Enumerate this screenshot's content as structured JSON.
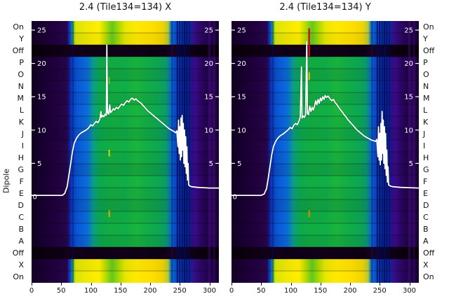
{
  "colors": {
    "background": "#ffffff",
    "line": "#ffffff",
    "axis_text": "#111111",
    "inner_text": "#ffffff",
    "row_shades": [
      1,
      0.96,
      1,
      0.98,
      0.92,
      1,
      0.95,
      1,
      0.97,
      0.92,
      1,
      0.96,
      0.9,
      1,
      0.95,
      0.9,
      0.97,
      1,
      0.93,
      1,
      0.97,
      1
    ],
    "gradients": {
      "normal": [
        [
          0.0,
          "#10001f"
        ],
        [
          0.06,
          "#180032"
        ],
        [
          0.13,
          "#22003f"
        ],
        [
          0.19,
          "#26064a"
        ],
        [
          0.2,
          "#131a8a"
        ],
        [
          0.215,
          "#0b3ec2"
        ],
        [
          0.245,
          "#0a57d8"
        ],
        [
          0.3,
          "#0a6fd8"
        ],
        [
          0.33,
          "#0b9f86"
        ],
        [
          0.365,
          "#0baa4e"
        ],
        [
          0.43,
          "#12ad41"
        ],
        [
          0.5,
          "#0fae48"
        ],
        [
          0.56,
          "#1ab53b"
        ],
        [
          0.62,
          "#11ad47"
        ],
        [
          0.68,
          "#0ca751"
        ],
        [
          0.72,
          "#0b9a6e"
        ],
        [
          0.744,
          "#0a6fc0"
        ],
        [
          0.76,
          "#0a4ecd"
        ],
        [
          0.8,
          "#0935b5"
        ],
        [
          0.84,
          "#0b2496"
        ],
        [
          0.854,
          "#2a0f86"
        ],
        [
          0.875,
          "#3b0a8a"
        ],
        [
          0.9,
          "#2e0668"
        ],
        [
          0.94,
          "#1e0347"
        ],
        [
          0.965,
          "#2b0857"
        ],
        [
          1.0,
          "#170130"
        ]
      ],
      "bright": [
        [
          0.0,
          "#130026"
        ],
        [
          0.13,
          "#220040"
        ],
        [
          0.19,
          "#26064a"
        ],
        [
          0.2,
          "#1130b0"
        ],
        [
          0.212,
          "#0a62c8"
        ],
        [
          0.222,
          "#49c23c"
        ],
        [
          0.235,
          "#d8e40a"
        ],
        [
          0.3,
          "#f2ea00"
        ],
        [
          0.36,
          "#ffee00"
        ],
        [
          0.395,
          "#b8dc00"
        ],
        [
          0.43,
          "#62c81e"
        ],
        [
          0.465,
          "#a8d800"
        ],
        [
          0.5,
          "#e8e600"
        ],
        [
          0.56,
          "#ffe900"
        ],
        [
          0.64,
          "#ffdf00"
        ],
        [
          0.7,
          "#f0d400"
        ],
        [
          0.73,
          "#b0c83a"
        ],
        [
          0.745,
          "#0a6fc0"
        ],
        [
          0.77,
          "#0a4ecd"
        ],
        [
          0.82,
          "#0a35b0"
        ],
        [
          0.845,
          "#0b2496"
        ],
        [
          0.86,
          "#33128e"
        ],
        [
          0.9,
          "#2e0668"
        ],
        [
          0.95,
          "#1e0347"
        ],
        [
          1.0,
          "#170130"
        ]
      ],
      "off": [
        [
          0.0,
          "#070008"
        ],
        [
          0.15,
          "#0e0014"
        ],
        [
          0.2,
          "#13001c"
        ],
        [
          0.3,
          "#0f0016"
        ],
        [
          0.5,
          "#110018"
        ],
        [
          0.7,
          "#0d0012"
        ],
        [
          0.76,
          "#180226"
        ],
        [
          0.8,
          "#10001a"
        ],
        [
          0.9,
          "#0a000e"
        ],
        [
          1.0,
          "#060008"
        ]
      ]
    }
  },
  "chart_data": {
    "type": "heatmap",
    "description": "Two dipole-vs-frequency power heatmaps with overlaid white median spectrum line",
    "y_axis_label": "Dipole",
    "rows": [
      "On",
      "Y",
      "Off",
      "P",
      "O",
      "N",
      "M",
      "L",
      "K",
      "J",
      "I",
      "H",
      "G",
      "F",
      "E",
      "D",
      "C",
      "B",
      "A",
      "Off",
      "X",
      "On"
    ],
    "row_types": [
      "bright",
      "bright",
      "off",
      "normal",
      "normal",
      "normal",
      "normal",
      "normal",
      "normal",
      "normal",
      "normal",
      "normal",
      "normal",
      "normal",
      "normal",
      "normal",
      "normal",
      "normal",
      "normal",
      "off",
      "bright",
      "bright"
    ],
    "x_ticks": [
      0,
      50,
      100,
      150,
      200,
      250,
      300
    ],
    "x_range": [
      0,
      316
    ],
    "line_scale": {
      "ticks": [
        25,
        20,
        15,
        10,
        5
      ],
      "zero_label": "0",
      "range": [
        0,
        25
      ]
    },
    "stripes": [
      {
        "x": 70,
        "w": 1.5,
        "color": "#001060",
        "o": 0.5
      },
      {
        "x": 237,
        "w": 1.5,
        "color": "#001878",
        "o": 0.5
      },
      {
        "x": 246,
        "w": 2,
        "color": "#000a56",
        "o": 0.75
      },
      {
        "x": 250,
        "w": 2,
        "color": "#000a56",
        "o": 0.8
      },
      {
        "x": 254,
        "w": 2,
        "color": "#000a56",
        "o": 0.7
      },
      {
        "x": 258,
        "w": 2.5,
        "color": "#000a56",
        "o": 0.85
      },
      {
        "x": 262,
        "w": 2,
        "color": "#000a56",
        "o": 0.7
      },
      {
        "x": 266,
        "w": 1.5,
        "color": "#000a56",
        "o": 0.6
      },
      {
        "x": 300,
        "w": 4,
        "color": "#5a0d9e",
        "o": 0.35
      },
      {
        "x": 308,
        "w": 3,
        "color": "#5a0d9e",
        "o": 0.3
      }
    ],
    "plots": [
      {
        "title": "2.4 (Tile134=134) X",
        "polarization": "X",
        "markers": [
          {
            "x": 131,
            "row": 4.6,
            "span": 0.8,
            "color": "#5fc41e",
            "w": 2
          },
          {
            "x": 131,
            "row": 10.7,
            "span": 0.8,
            "color": "#c3dc00",
            "w": 2
          },
          {
            "x": 131,
            "row": 15.8,
            "span": 0.8,
            "color": "#e0a800",
            "w": 2
          }
        ],
        "line": [
          [
            0,
            0.2
          ],
          [
            40,
            0.2
          ],
          [
            52,
            0.2
          ],
          [
            56,
            0.5
          ],
          [
            60,
            1.5
          ],
          [
            63,
            3.2
          ],
          [
            66,
            5.0
          ],
          [
            69,
            6.8
          ],
          [
            72,
            8.0
          ],
          [
            76,
            8.8
          ],
          [
            80,
            9.3
          ],
          [
            84,
            9.6
          ],
          [
            88,
            9.8
          ],
          [
            92,
            10.0
          ],
          [
            96,
            10.3
          ],
          [
            100,
            10.8
          ],
          [
            103,
            10.6
          ],
          [
            106,
            11.0
          ],
          [
            109,
            11.3
          ],
          [
            112,
            11.1
          ],
          [
            115,
            11.6
          ],
          [
            117,
            12.8
          ],
          [
            118,
            11.9
          ],
          [
            120,
            12.2
          ],
          [
            122,
            12.0
          ],
          [
            124,
            12.4
          ],
          [
            126,
            12.2
          ],
          [
            127,
            22.8
          ],
          [
            128,
            12.6
          ],
          [
            130,
            12.4
          ],
          [
            132,
            13.8
          ],
          [
            133,
            12.6
          ],
          [
            135,
            12.8
          ],
          [
            138,
            13.2
          ],
          [
            140,
            13.0
          ],
          [
            143,
            13.4
          ],
          [
            146,
            13.2
          ],
          [
            149,
            13.6
          ],
          [
            152,
            13.9
          ],
          [
            155,
            13.7
          ],
          [
            158,
            14.1
          ],
          [
            161,
            14.4
          ],
          [
            164,
            14.2
          ],
          [
            167,
            14.6
          ],
          [
            170,
            14.8
          ],
          [
            173,
            14.5
          ],
          [
            176,
            14.7
          ],
          [
            179,
            14.4
          ],
          [
            182,
            14.2
          ],
          [
            185,
            14.0
          ],
          [
            188,
            13.7
          ],
          [
            191,
            13.4
          ],
          [
            194,
            13.1
          ],
          [
            197,
            12.8
          ],
          [
            200,
            12.6
          ],
          [
            204,
            12.3
          ],
          [
            208,
            12.0
          ],
          [
            212,
            11.7
          ],
          [
            216,
            11.4
          ],
          [
            220,
            11.1
          ],
          [
            224,
            10.8
          ],
          [
            228,
            10.5
          ],
          [
            232,
            10.2
          ],
          [
            236,
            10.0
          ],
          [
            240,
            9.8
          ],
          [
            243,
            9.6
          ],
          [
            245,
            9.9
          ],
          [
            247,
            7.5
          ],
          [
            248,
            11.5
          ],
          [
            249,
            6.5
          ],
          [
            250,
            10.5
          ],
          [
            251,
            5.5
          ],
          [
            252,
            11.8
          ],
          [
            253,
            6.0
          ],
          [
            254,
            12.2
          ],
          [
            255,
            7.0
          ],
          [
            256,
            11.0
          ],
          [
            257,
            5.0
          ],
          [
            258,
            10.0
          ],
          [
            259,
            4.5
          ],
          [
            260,
            9.0
          ],
          [
            261,
            3.5
          ],
          [
            262,
            7.5
          ],
          [
            263,
            2.5
          ],
          [
            264,
            5.0
          ],
          [
            265,
            1.8
          ],
          [
            267,
            1.6
          ],
          [
            270,
            1.5
          ],
          [
            280,
            1.4
          ],
          [
            290,
            1.35
          ],
          [
            300,
            1.3
          ],
          [
            316,
            1.3
          ]
        ]
      },
      {
        "title": "2.4 (Tile134=134) Y",
        "polarization": "Y",
        "markers": [
          {
            "x": 131,
            "row": 0.5,
            "span": 2.6,
            "color": "#cc1111",
            "w": 2.5
          },
          {
            "x": 131,
            "row": 4.2,
            "span": 0.9,
            "color": "#d8cc00",
            "w": 2
          },
          {
            "x": 131,
            "row": 15.8,
            "span": 0.8,
            "color": "#e08800",
            "w": 2
          }
        ],
        "line": [
          [
            0,
            0.2
          ],
          [
            50,
            0.2
          ],
          [
            55,
            0.4
          ],
          [
            59,
            1.2
          ],
          [
            62,
            2.8
          ],
          [
            65,
            4.6
          ],
          [
            68,
            6.4
          ],
          [
            71,
            7.6
          ],
          [
            75,
            8.4
          ],
          [
            79,
            8.9
          ],
          [
            83,
            9.2
          ],
          [
            87,
            9.4
          ],
          [
            91,
            9.7
          ],
          [
            95,
            10.0
          ],
          [
            99,
            10.4
          ],
          [
            102,
            10.2
          ],
          [
            105,
            10.7
          ],
          [
            108,
            11.0
          ],
          [
            111,
            10.8
          ],
          [
            114,
            11.4
          ],
          [
            116,
            12.0
          ],
          [
            118,
            19.5
          ],
          [
            119,
            11.8
          ],
          [
            121,
            12.1
          ],
          [
            123,
            11.9
          ],
          [
            125,
            12.3
          ],
          [
            127,
            23.3
          ],
          [
            128,
            12.5
          ],
          [
            130,
            12.3
          ],
          [
            132,
            13.6
          ],
          [
            134,
            12.8
          ],
          [
            136,
            13.4
          ],
          [
            138,
            13.0
          ],
          [
            140,
            13.6
          ],
          [
            142,
            14.4
          ],
          [
            144,
            13.8
          ],
          [
            146,
            14.6
          ],
          [
            148,
            14.0
          ],
          [
            150,
            14.8
          ],
          [
            152,
            14.4
          ],
          [
            154,
            15.0
          ],
          [
            156,
            14.6
          ],
          [
            158,
            15.2
          ],
          [
            160,
            14.9
          ],
          [
            163,
            15.1
          ],
          [
            166,
            14.7
          ],
          [
            169,
            14.4
          ],
          [
            172,
            14.6
          ],
          [
            175,
            14.1
          ],
          [
            178,
            13.8
          ],
          [
            181,
            13.4
          ],
          [
            184,
            13.0
          ],
          [
            187,
            12.7
          ],
          [
            190,
            12.3
          ],
          [
            193,
            12.0
          ],
          [
            196,
            11.6
          ],
          [
            200,
            11.2
          ],
          [
            204,
            10.8
          ],
          [
            208,
            10.4
          ],
          [
            212,
            10.0
          ],
          [
            216,
            9.7
          ],
          [
            220,
            9.4
          ],
          [
            224,
            9.1
          ],
          [
            228,
            8.9
          ],
          [
            232,
            8.7
          ],
          [
            236,
            8.5
          ],
          [
            240,
            8.4
          ],
          [
            243,
            8.3
          ],
          [
            245,
            8.6
          ],
          [
            247,
            6.0
          ],
          [
            248,
            10.5
          ],
          [
            249,
            5.5
          ],
          [
            250,
            9.5
          ],
          [
            251,
            4.8
          ],
          [
            252,
            11.0
          ],
          [
            253,
            5.5
          ],
          [
            254,
            12.8
          ],
          [
            255,
            6.5
          ],
          [
            256,
            11.5
          ],
          [
            257,
            5.0
          ],
          [
            258,
            10.5
          ],
          [
            259,
            4.2
          ],
          [
            260,
            9.5
          ],
          [
            261,
            3.2
          ],
          [
            262,
            7.0
          ],
          [
            263,
            2.2
          ],
          [
            264,
            4.5
          ],
          [
            265,
            1.8
          ],
          [
            268,
            1.6
          ],
          [
            272,
            1.5
          ],
          [
            285,
            1.4
          ],
          [
            300,
            1.35
          ],
          [
            316,
            1.3
          ]
        ]
      }
    ]
  }
}
